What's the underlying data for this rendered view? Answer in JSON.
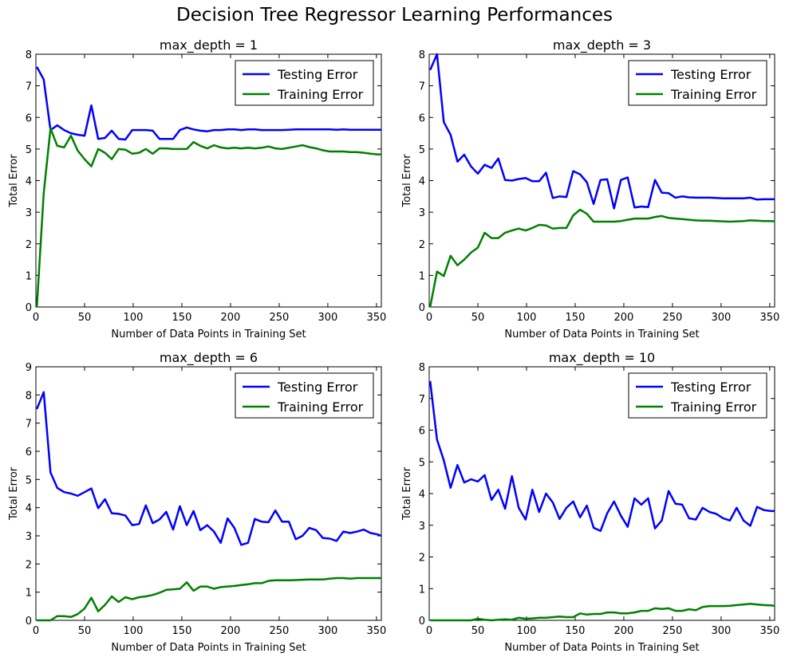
{
  "suptitle": "Decision Tree Regressor Learning Performances",
  "colors": {
    "testing": "#0000ff",
    "training": "#008000"
  },
  "chart_data": [
    {
      "type": "line",
      "title": "max_depth = 1",
      "xlabel": "Number of Data Points in Training Set",
      "ylabel": "Total Error",
      "xlim": [
        0,
        355
      ],
      "ylim": [
        0,
        8
      ],
      "xticks": [
        0,
        50,
        100,
        150,
        200,
        250,
        300,
        350
      ],
      "yticks": [
        0,
        1,
        2,
        3,
        4,
        5,
        6,
        7,
        8
      ],
      "legend": "top-right",
      "x": [
        1,
        8,
        15,
        22,
        29,
        36,
        43,
        50,
        57,
        64,
        71,
        78,
        85,
        92,
        99,
        106,
        113,
        120,
        127,
        134,
        141,
        148,
        155,
        162,
        169,
        176,
        183,
        190,
        197,
        204,
        211,
        218,
        225,
        232,
        239,
        246,
        253,
        260,
        267,
        274,
        281,
        288,
        295,
        302,
        309,
        316,
        323,
        330,
        337,
        344,
        351,
        355
      ],
      "series": [
        {
          "name": "Testing Error",
          "values": [
            7.6,
            7.2,
            5.6,
            5.75,
            5.6,
            5.5,
            5.45,
            5.42,
            6.38,
            5.32,
            5.35,
            5.58,
            5.32,
            5.3,
            5.6,
            5.6,
            5.6,
            5.58,
            5.32,
            5.32,
            5.32,
            5.6,
            5.68,
            5.62,
            5.58,
            5.56,
            5.6,
            5.6,
            5.62,
            5.62,
            5.6,
            5.62,
            5.62,
            5.6,
            5.6,
            5.6,
            5.6,
            5.61,
            5.62,
            5.62,
            5.62,
            5.62,
            5.62,
            5.62,
            5.61,
            5.62,
            5.61,
            5.61,
            5.61,
            5.61,
            5.61,
            5.61
          ]
        },
        {
          "name": "Training Error",
          "values": [
            0.0,
            3.6,
            5.65,
            5.1,
            5.05,
            5.42,
            4.95,
            4.68,
            4.45,
            5.0,
            4.88,
            4.68,
            5.0,
            4.98,
            4.85,
            4.88,
            5.0,
            4.85,
            5.02,
            5.02,
            5.0,
            5.0,
            5.0,
            5.22,
            5.1,
            5.02,
            5.12,
            5.05,
            5.02,
            5.04,
            5.02,
            5.04,
            5.02,
            5.04,
            5.08,
            5.02,
            5.0,
            5.04,
            5.08,
            5.12,
            5.06,
            5.02,
            4.96,
            4.92,
            4.92,
            4.92,
            4.9,
            4.9,
            4.88,
            4.85,
            4.83,
            4.83
          ]
        }
      ]
    },
    {
      "type": "line",
      "title": "max_depth = 3",
      "xlabel": "Number of Data Points in Training Set",
      "ylabel": "Total Error",
      "xlim": [
        0,
        355
      ],
      "ylim": [
        0,
        8
      ],
      "xticks": [
        0,
        50,
        100,
        150,
        200,
        250,
        300,
        350
      ],
      "yticks": [
        0,
        1,
        2,
        3,
        4,
        5,
        6,
        7,
        8
      ],
      "legend": "top-right",
      "x": [
        1,
        8,
        15,
        22,
        29,
        36,
        43,
        50,
        57,
        64,
        71,
        78,
        85,
        92,
        99,
        106,
        113,
        120,
        127,
        134,
        141,
        148,
        155,
        162,
        169,
        176,
        183,
        190,
        197,
        204,
        211,
        218,
        225,
        232,
        239,
        246,
        253,
        260,
        267,
        274,
        281,
        288,
        295,
        302,
        309,
        316,
        323,
        330,
        337,
        344,
        351,
        355
      ],
      "series": [
        {
          "name": "Testing Error",
          "values": [
            7.5,
            8.0,
            5.85,
            5.45,
            4.6,
            4.82,
            4.45,
            4.22,
            4.5,
            4.4,
            4.7,
            4.02,
            4.0,
            4.05,
            4.08,
            3.98,
            3.98,
            4.25,
            3.45,
            3.5,
            3.48,
            4.3,
            4.2,
            3.95,
            3.26,
            4.02,
            4.04,
            3.12,
            4.02,
            4.1,
            3.15,
            3.18,
            3.16,
            4.02,
            3.62,
            3.6,
            3.46,
            3.5,
            3.47,
            3.46,
            3.46,
            3.46,
            3.45,
            3.44,
            3.44,
            3.44,
            3.44,
            3.46,
            3.4,
            3.41,
            3.41,
            3.41
          ]
        },
        {
          "name": "Training Error",
          "values": [
            0.0,
            1.12,
            0.98,
            1.62,
            1.32,
            1.5,
            1.72,
            1.88,
            2.35,
            2.18,
            2.18,
            2.35,
            2.42,
            2.48,
            2.42,
            2.5,
            2.6,
            2.58,
            2.48,
            2.5,
            2.5,
            2.9,
            3.08,
            2.95,
            2.7,
            2.7,
            2.7,
            2.7,
            2.72,
            2.76,
            2.8,
            2.8,
            2.8,
            2.85,
            2.88,
            2.82,
            2.8,
            2.78,
            2.76,
            2.74,
            2.73,
            2.73,
            2.72,
            2.71,
            2.7,
            2.71,
            2.72,
            2.74,
            2.73,
            2.72,
            2.72,
            2.71
          ]
        }
      ]
    },
    {
      "type": "line",
      "title": "max_depth = 6",
      "xlabel": "Number of Data Points in Training Set",
      "ylabel": "Total Error",
      "xlim": [
        0,
        355
      ],
      "ylim": [
        0,
        9
      ],
      "xticks": [
        0,
        50,
        100,
        150,
        200,
        250,
        300,
        350
      ],
      "yticks": [
        0,
        1,
        2,
        3,
        4,
        5,
        6,
        7,
        8,
        9
      ],
      "legend": "top-right",
      "x": [
        1,
        8,
        15,
        22,
        29,
        36,
        43,
        50,
        57,
        64,
        71,
        78,
        85,
        92,
        99,
        106,
        113,
        120,
        127,
        134,
        141,
        148,
        155,
        162,
        169,
        176,
        183,
        190,
        197,
        204,
        211,
        218,
        225,
        232,
        239,
        246,
        253,
        260,
        267,
        274,
        281,
        288,
        295,
        302,
        309,
        316,
        323,
        330,
        337,
        344,
        351,
        355
      ],
      "series": [
        {
          "name": "Testing Error",
          "values": [
            7.5,
            8.1,
            5.25,
            4.7,
            4.55,
            4.5,
            4.42,
            4.55,
            4.68,
            3.98,
            4.3,
            3.8,
            3.78,
            3.72,
            3.38,
            3.42,
            4.08,
            3.45,
            3.58,
            3.85,
            3.22,
            4.05,
            3.38,
            3.88,
            3.2,
            3.38,
            3.15,
            2.75,
            3.62,
            3.28,
            2.68,
            2.75,
            3.6,
            3.5,
            3.48,
            3.9,
            3.5,
            3.5,
            2.88,
            3.0,
            3.28,
            3.2,
            2.92,
            2.9,
            2.82,
            3.15,
            3.1,
            3.15,
            3.22,
            3.1,
            3.05,
            3.0
          ]
        },
        {
          "name": "Training Error",
          "values": [
            0.0,
            0.0,
            0.0,
            0.15,
            0.15,
            0.12,
            0.22,
            0.42,
            0.8,
            0.32,
            0.55,
            0.85,
            0.65,
            0.82,
            0.75,
            0.82,
            0.85,
            0.9,
            0.98,
            1.08,
            1.1,
            1.12,
            1.35,
            1.05,
            1.2,
            1.2,
            1.12,
            1.18,
            1.2,
            1.22,
            1.25,
            1.28,
            1.32,
            1.32,
            1.4,
            1.42,
            1.42,
            1.42,
            1.43,
            1.44,
            1.45,
            1.45,
            1.45,
            1.48,
            1.5,
            1.5,
            1.48,
            1.5,
            1.5,
            1.5,
            1.5,
            1.5
          ]
        }
      ]
    },
    {
      "type": "line",
      "title": "max_depth = 10",
      "xlabel": "Number of Data Points in Training Set",
      "ylabel": "Total Error",
      "xlim": [
        0,
        355
      ],
      "ylim": [
        0,
        8
      ],
      "xticks": [
        0,
        50,
        100,
        150,
        200,
        250,
        300,
        350
      ],
      "yticks": [
        0,
        1,
        2,
        3,
        4,
        5,
        6,
        7,
        8
      ],
      "legend": "top-right",
      "x": [
        1,
        8,
        15,
        22,
        29,
        36,
        43,
        50,
        57,
        64,
        71,
        78,
        85,
        92,
        99,
        106,
        113,
        120,
        127,
        134,
        141,
        148,
        155,
        162,
        169,
        176,
        183,
        190,
        197,
        204,
        211,
        218,
        225,
        232,
        239,
        246,
        253,
        260,
        267,
        274,
        281,
        288,
        295,
        302,
        309,
        316,
        323,
        330,
        337,
        344,
        351,
        355
      ],
      "series": [
        {
          "name": "Testing Error",
          "values": [
            7.55,
            5.7,
            5.05,
            4.18,
            4.9,
            4.35,
            4.45,
            4.38,
            4.58,
            3.8,
            4.12,
            3.52,
            4.55,
            3.55,
            3.18,
            4.12,
            3.42,
            4.0,
            3.72,
            3.2,
            3.55,
            3.75,
            3.25,
            3.62,
            2.92,
            2.82,
            3.38,
            3.75,
            3.3,
            2.95,
            3.85,
            3.65,
            3.85,
            2.9,
            3.15,
            4.08,
            3.68,
            3.65,
            3.22,
            3.18,
            3.55,
            3.42,
            3.36,
            3.22,
            3.15,
            3.55,
            3.15,
            2.98,
            3.58,
            3.48,
            3.45,
            3.45
          ]
        },
        {
          "name": "Training Error",
          "values": [
            0.0,
            0.0,
            0.0,
            0.0,
            0.0,
            0.0,
            0.0,
            0.05,
            0.02,
            0.0,
            0.02,
            0.03,
            0.02,
            0.08,
            0.05,
            0.06,
            0.08,
            0.08,
            0.1,
            0.12,
            0.1,
            0.1,
            0.22,
            0.18,
            0.2,
            0.2,
            0.25,
            0.25,
            0.22,
            0.22,
            0.25,
            0.3,
            0.3,
            0.38,
            0.36,
            0.38,
            0.3,
            0.3,
            0.35,
            0.32,
            0.42,
            0.45,
            0.45,
            0.45,
            0.46,
            0.48,
            0.5,
            0.52,
            0.5,
            0.48,
            0.47,
            0.46
          ]
        }
      ]
    }
  ]
}
